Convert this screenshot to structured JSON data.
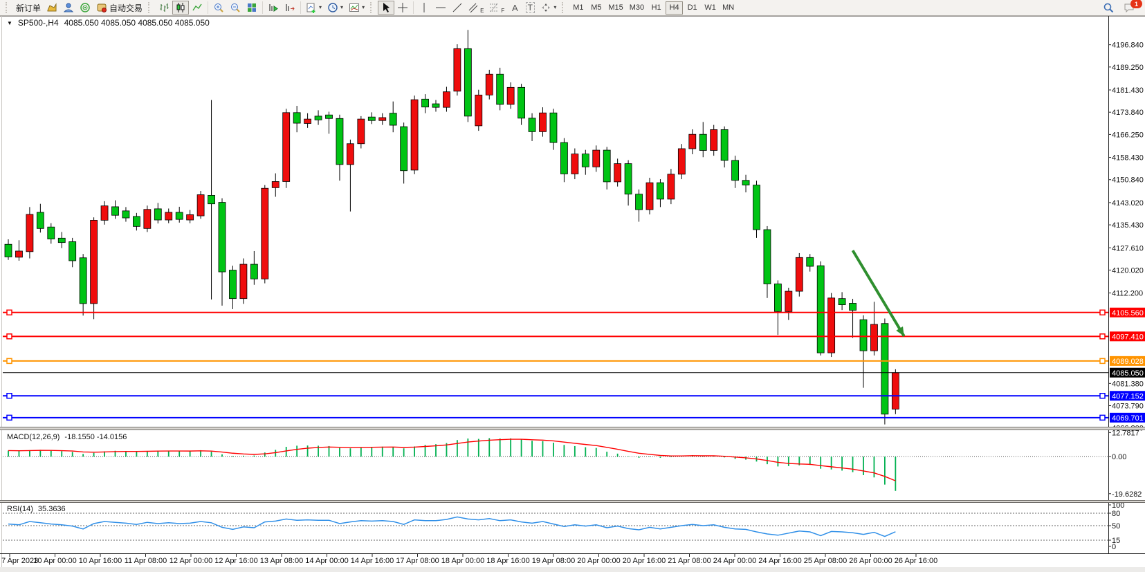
{
  "icons": {
    "collapse": "▼",
    "caret": "▾",
    "text_tool": "A",
    "label_tool": "T",
    "channel_mark": "E",
    "fibo_mark": "F"
  },
  "toolbar": {
    "new_order": "新订单",
    "auto_trading": "自动交易",
    "timeframes": [
      "M1",
      "M5",
      "M15",
      "M30",
      "H1",
      "H4",
      "D1",
      "W1",
      "MN"
    ],
    "active_timeframe": "H4",
    "badge_count": "1"
  },
  "window": {
    "title_symbol": "SP500-,H4",
    "title_quotes": "4085.050 4085.050 4085.050 4085.050"
  },
  "chart_data": {
    "type": "candlestick",
    "symbol": "SP500-",
    "timeframe": "H4",
    "up_color": "#ef0d0d",
    "down_color": "#00c414",
    "wick_color": "#000000",
    "ylim_main": [
      4066.6,
      4203.6
    ],
    "price_ticks": [
      [
        "4196.840",
        4196.84
      ],
      [
        "4189.250",
        4189.25
      ],
      [
        "4181.430",
        4181.43
      ],
      [
        "4173.840",
        4173.84
      ],
      [
        "4166.250",
        4166.25
      ],
      [
        "4158.430",
        4158.43
      ],
      [
        "4150.840",
        4150.84
      ],
      [
        "4143.020",
        4143.02
      ],
      [
        "4135.430",
        4135.43
      ],
      [
        "4127.610",
        4127.61
      ],
      [
        "4120.020",
        4120.02
      ],
      [
        "4112.200",
        4112.2
      ],
      [
        "4081.380",
        4081.38
      ],
      [
        "4073.790",
        4073.79
      ],
      [
        "4066.200",
        4066.2
      ]
    ],
    "price_lines": [
      {
        "label": "4105.560",
        "value": 4105.56,
        "color": "#ff0000",
        "handles": true
      },
      {
        "label": "4097.410",
        "value": 4097.41,
        "color": "#ff0000",
        "handles": true
      },
      {
        "label": "4089.028",
        "value": 4089.028,
        "color": "#ff9400",
        "handles": true
      },
      {
        "label": "4085.050",
        "value": 4085.05,
        "color": "#000000",
        "handles": false
      },
      {
        "label": "4077.152",
        "value": 4077.152,
        "color": "#0000ff",
        "handles": true
      },
      {
        "label": "4069.701",
        "value": 4069.701,
        "color": "#0000ff",
        "handles": true
      }
    ],
    "x_labels": [
      "7 Apr 2023",
      "10 Apr 00:00",
      "10 Apr 16:00",
      "11 Apr 08:00",
      "12 Apr 00:00",
      "12 Apr 16:00",
      "13 Apr 08:00",
      "14 Apr 00:00",
      "14 Apr 16:00",
      "17 Apr 08:00",
      "18 Apr 00:00",
      "18 Apr 16:00",
      "19 Apr 08:00",
      "20 Apr 00:00",
      "20 Apr 16:00",
      "21 Apr 08:00",
      "24 Apr 00:00",
      "24 Apr 16:00",
      "25 Apr 08:00",
      "26 Apr 00:00",
      "26 Apr 16:00"
    ],
    "candles": [
      [
        4128.8,
        4130.5,
        4123.5,
        4124.5
      ],
      [
        4124.4,
        4130.2,
        4123.2,
        4126.5
      ],
      [
        4126.3,
        4141.5,
        4124.0,
        4139.0
      ],
      [
        4139.7,
        4142.6,
        4132.8,
        4134.2
      ],
      [
        4134.7,
        4136.0,
        4129.0,
        4130.6
      ],
      [
        4130.9,
        4133.0,
        4127.5,
        4129.4
      ],
      [
        4129.7,
        4131.0,
        4121.0,
        4123.2
      ],
      [
        4124.2,
        4125.5,
        4104.5,
        4108.6
      ],
      [
        4108.6,
        4138.0,
        4103.3,
        4137.0
      ],
      [
        4137.0,
        4143.5,
        4135.5,
        4141.9
      ],
      [
        4141.6,
        4143.8,
        4137.5,
        4138.7
      ],
      [
        4140.2,
        4141.5,
        4136.5,
        4137.8
      ],
      [
        4138.3,
        4139.5,
        4133.5,
        4134.9
      ],
      [
        4134.2,
        4142.0,
        4133.0,
        4140.7
      ],
      [
        4140.9,
        4142.9,
        4135.9,
        4137.1
      ],
      [
        4137.1,
        4141.0,
        4136.0,
        4139.7
      ],
      [
        4139.7,
        4141.6,
        4136.2,
        4137.3
      ],
      [
        4137.1,
        4140.5,
        4136.0,
        4138.9
      ],
      [
        4138.5,
        4147.0,
        4137.5,
        4145.7
      ],
      [
        4145.5,
        4178.0,
        4110.0,
        4142.6
      ],
      [
        4143.1,
        4144.5,
        4107.9,
        4119.4
      ],
      [
        4120.0,
        4121.5,
        4106.7,
        4110.3
      ],
      [
        4110.3,
        4124.0,
        4108.5,
        4122.0
      ],
      [
        4122.0,
        4126.5,
        4115.0,
        4117.0
      ],
      [
        4117.0,
        4149.0,
        4115.5,
        4147.9
      ],
      [
        4148.1,
        4153.0,
        4145.0,
        4150.2
      ],
      [
        4150.2,
        4175.0,
        4148.0,
        4173.7
      ],
      [
        4173.7,
        4176.0,
        4167.0,
        4170.1
      ],
      [
        4170.0,
        4173.5,
        4168.5,
        4171.5
      ],
      [
        4172.5,
        4174.5,
        4169.5,
        4171.2
      ],
      [
        4172.9,
        4174.0,
        4166.5,
        4171.7
      ],
      [
        4171.7,
        4173.0,
        4150.5,
        4156.0
      ],
      [
        4156.0,
        4164.5,
        4140.0,
        4163.1
      ],
      [
        4163.1,
        4172.5,
        4161.5,
        4171.5
      ],
      [
        4172.2,
        4173.8,
        4169.8,
        4171.0
      ],
      [
        4171.0,
        4173.5,
        4169.5,
        4172.0
      ],
      [
        4173.5,
        4177.5,
        4167.0,
        4169.4
      ],
      [
        4168.9,
        4170.3,
        4149.5,
        4153.9
      ],
      [
        4154.1,
        4179.5,
        4152.7,
        4178.1
      ],
      [
        4178.3,
        4180.0,
        4173.5,
        4175.6
      ],
      [
        4176.7,
        4178.0,
        4174.0,
        4175.5
      ],
      [
        4175.5,
        4182.5,
        4174.0,
        4180.8
      ],
      [
        4181.0,
        4197.0,
        4179.5,
        4195.5
      ],
      [
        4195.5,
        4201.9,
        4170.5,
        4172.5
      ],
      [
        4169.2,
        4181.5,
        4167.5,
        4179.7
      ],
      [
        4179.7,
        4188.3,
        4178.2,
        4186.8
      ],
      [
        4186.8,
        4189.0,
        4174.5,
        4176.5
      ],
      [
        4176.5,
        4184.0,
        4175.0,
        4182.3
      ],
      [
        4182.3,
        4183.5,
        4169.5,
        4171.8
      ],
      [
        4171.8,
        4173.5,
        4164.0,
        4167.2
      ],
      [
        4167.2,
        4175.5,
        4165.5,
        4173.6
      ],
      [
        4173.6,
        4175.0,
        4161.0,
        4163.5
      ],
      [
        4163.5,
        4165.0,
        4150.0,
        4152.8
      ],
      [
        4152.8,
        4161.5,
        4151.0,
        4159.6
      ],
      [
        4159.6,
        4161.0,
        4152.5,
        4155.2
      ],
      [
        4155.2,
        4162.5,
        4153.5,
        4160.9
      ],
      [
        4160.9,
        4162.0,
        4147.5,
        4150.1
      ],
      [
        4150.1,
        4158.0,
        4148.5,
        4156.3
      ],
      [
        4156.3,
        4157.5,
        4142.0,
        4145.9
      ],
      [
        4145.9,
        4147.5,
        4136.5,
        4140.6
      ],
      [
        4140.6,
        4151.5,
        4139.0,
        4149.8
      ],
      [
        4149.8,
        4151.0,
        4141.5,
        4144.2
      ],
      [
        4144.2,
        4154.5,
        4142.5,
        4152.7
      ],
      [
        4152.7,
        4163.0,
        4151.0,
        4161.4
      ],
      [
        4161.4,
        4168.0,
        4159.5,
        4166.3
      ],
      [
        4166.3,
        4170.5,
        4158.5,
        4160.8
      ],
      [
        4160.8,
        4169.5,
        4159.0,
        4167.9
      ],
      [
        4167.9,
        4169.0,
        4155.0,
        4157.4
      ],
      [
        4157.4,
        4159.0,
        4148.0,
        4150.6
      ],
      [
        4150.6,
        4152.5,
        4146.5,
        4149.0
      ],
      [
        4149.0,
        4150.5,
        4131.0,
        4133.8
      ],
      [
        4133.8,
        4135.0,
        4110.5,
        4115.3
      ],
      [
        4115.3,
        4116.5,
        4097.9,
        4105.9
      ],
      [
        4105.9,
        4114.0,
        4103.0,
        4112.8
      ],
      [
        4112.8,
        4125.8,
        4111.0,
        4124.3
      ],
      [
        4124.3,
        4125.5,
        4119.5,
        4121.3
      ],
      [
        4121.5,
        4123.0,
        4090.9,
        4091.8
      ],
      [
        4091.8,
        4112.2,
        4090.4,
        4110.5
      ],
      [
        4110.3,
        4112.5,
        4106.4,
        4108.2
      ],
      [
        4108.7,
        4110.2,
        4096.9,
        4106.3
      ],
      [
        4103.1,
        4104.6,
        4079.9,
        4092.5
      ],
      [
        4092.5,
        4109.2,
        4090.9,
        4101.5
      ],
      [
        4101.8,
        4103.5,
        4067.4,
        4070.9
      ],
      [
        4072.6,
        4086.2,
        4070.9,
        4085.05
      ]
    ],
    "macd": {
      "label": "MACD(12,26,9)",
      "value_text": "-18.1550 -14.0156",
      "axis_ticks": [
        [
          "12.7817",
          12.7817
        ],
        [
          "0.00",
          0
        ],
        [
          "-19.6282",
          -19.6282
        ]
      ],
      "ylim": [
        -23,
        14
      ],
      "histogram": [
        3.2,
        3.0,
        3.4,
        3.6,
        3.2,
        2.9,
        2.5,
        1.4,
        2.0,
        2.8,
        3.1,
        3.0,
        2.7,
        3.0,
        3.2,
        3.1,
        3.0,
        2.9,
        3.4,
        2.6,
        1.2,
        0.4,
        0.5,
        0.6,
        2.2,
        3.6,
        5.2,
        5.8,
        5.9,
        5.8,
        5.6,
        4.6,
        4.4,
        5.0,
        5.2,
        5.3,
        5.2,
        4.4,
        5.4,
        6.2,
        6.6,
        7.2,
        8.8,
        9.6,
        9.4,
        9.8,
        9.6,
        9.7,
        9.2,
        8.4,
        8.2,
        7.4,
        6.2,
        5.6,
        5.0,
        4.6,
        2.6,
        1.6,
        0.2,
        -0.6,
        -0.2,
        -0.6,
        -0.3,
        0.4,
        0.8,
        0.3,
        0.5,
        -0.4,
        -1.2,
        -1.6,
        -2.6,
        -4.0,
        -5.2,
        -5.0,
        -4.6,
        -4.4,
        -6.4,
        -6.8,
        -7.4,
        -8.2,
        -9.8,
        -11.0,
        -14.8,
        -18.155
      ],
      "histogram_color": "#00b050",
      "signal_color": "#ff0000"
    },
    "rsi": {
      "label": "RSI(14)",
      "value_text": "35.3636",
      "axis_ticks": [
        [
          "100",
          100
        ],
        [
          "80",
          80
        ],
        [
          "50",
          50
        ],
        [
          "15",
          15
        ],
        [
          "0",
          0
        ]
      ],
      "levels": [
        80,
        50,
        15
      ],
      "ylim": [
        0,
        100
      ],
      "line_color": "#2f8fe8",
      "values": [
        54,
        52,
        60,
        57,
        54,
        52,
        49,
        42,
        55,
        60,
        58,
        56,
        53,
        58,
        55,
        57,
        55,
        56,
        60,
        57,
        46,
        41,
        47,
        45,
        59,
        61,
        66,
        63,
        64,
        63,
        63,
        55,
        59,
        62,
        61,
        62,
        60,
        53,
        64,
        62,
        62,
        65,
        71,
        66,
        64,
        67,
        62,
        64,
        59,
        56,
        60,
        54,
        48,
        52,
        49,
        52,
        45,
        49,
        43,
        40,
        46,
        42,
        46,
        50,
        53,
        50,
        52,
        46,
        42,
        41,
        35,
        30,
        27,
        32,
        37,
        35,
        26,
        36,
        35,
        33,
        29,
        34,
        24,
        35.36
      ]
    },
    "annotation_arrow": {
      "from_bar": 79.0,
      "from_price": 4126.7,
      "to_bar": 83.8,
      "to_price": 4097.5,
      "color": "#2f8f2f"
    }
  }
}
